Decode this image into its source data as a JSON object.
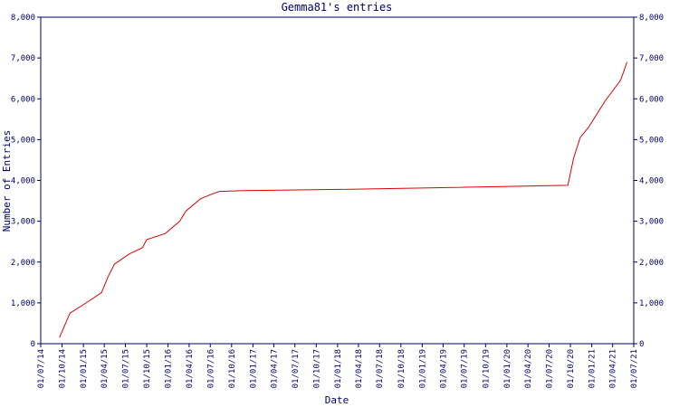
{
  "chart_data": {
    "type": "line",
    "title": "Gemma81's entries",
    "x_label": "Date",
    "y_label": "Number of Entries",
    "x": [
      "20/09/14",
      "04/11/14",
      "13/01/15",
      "20/03/15",
      "18/04/15",
      "15/05/15",
      "18/07/15",
      "12/09/15",
      "01/10/15",
      "20/12/15",
      "20/02/16",
      "18/03/16",
      "20/05/16",
      "01/07/16",
      "10/08/16",
      "25/11/16",
      "10/01/18",
      "25/02/19",
      "20/09/20",
      "15/10/20",
      "12/11/20",
      "18/12/20",
      "28/02/21",
      "05/05/21",
      "02/06/21"
    ],
    "series": [
      {
        "name": "Entries",
        "color": "#dd0000",
        "values": [
          150,
          750,
          1000,
          1250,
          1650,
          1950,
          2200,
          2350,
          2550,
          2700,
          3000,
          3250,
          3550,
          3650,
          3730,
          3750,
          3780,
          3820,
          3880,
          4550,
          5050,
          5300,
          5950,
          6450,
          6900
        ]
      }
    ],
    "xlim": [
      "01/07/14",
      "01/07/21"
    ],
    "xticks": [
      "01/07/14",
      "01/10/14",
      "01/01/15",
      "01/04/15",
      "01/07/15",
      "01/10/15",
      "01/01/16",
      "01/04/16",
      "01/07/16",
      "01/10/16",
      "01/01/17",
      "01/04/17",
      "01/07/17",
      "01/10/17",
      "01/01/18",
      "01/04/18",
      "01/07/18",
      "01/10/18",
      "01/01/19",
      "01/04/19",
      "01/07/19",
      "01/10/19",
      "01/01/20",
      "01/04/20",
      "01/07/20",
      "01/10/20",
      "01/01/21",
      "01/04/21",
      "01/07/21"
    ],
    "ylim": [
      0,
      8000
    ],
    "yticks": [
      0,
      {
        "value": 1000,
        "label": "1,000"
      },
      {
        "value": 2000,
        "label": "2,000"
      },
      {
        "value": 3000,
        "label": "3,000"
      },
      {
        "value": 4000,
        "label": "4,000"
      },
      {
        "value": 5000,
        "label": "5,000"
      },
      {
        "value": 6000,
        "label": "6,000"
      },
      {
        "value": 7000,
        "label": "7,000"
      },
      {
        "value": 8000,
        "label": "8,000"
      }
    ]
  }
}
